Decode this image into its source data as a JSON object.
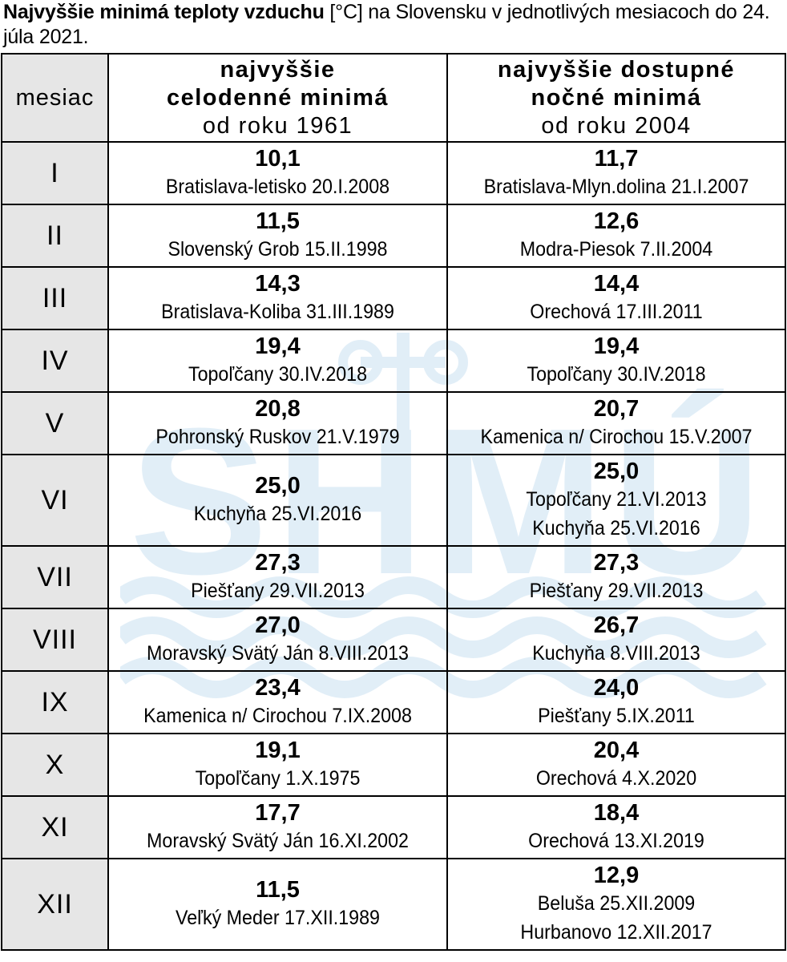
{
  "title": {
    "bold": "Najvyššie minimá teploty vzduchu",
    "rest": " [°C] na Slovensku v jednotlivých mesiacoch do 24. júla 2021."
  },
  "watermark": {
    "text": "SHMÚ",
    "color": "#1f7fc4"
  },
  "table": {
    "header": {
      "month": "mesiac",
      "col_a": {
        "line1": "najvyššie",
        "line2": "celodenné minimá",
        "line3": "od roku 1961"
      },
      "col_b": {
        "line1": "najvyššie dostupné",
        "line2": "nočné minimá",
        "line3": "od roku 2004"
      }
    },
    "rows": [
      {
        "month": "I",
        "a_value": "10,1",
        "a_locs": [
          "Bratislava-letisko 20.I.2008"
        ],
        "b_value": "11,7",
        "b_locs": [
          "Bratislava-Mlyn.dolina 21.I.2007"
        ]
      },
      {
        "month": "II",
        "a_value": "11,5",
        "a_locs": [
          "Slovenský Grob 15.II.1998"
        ],
        "b_value": "12,6",
        "b_locs": [
          "Modra-Piesok 7.II.2004"
        ]
      },
      {
        "month": "III",
        "a_value": "14,3",
        "a_locs": [
          "Bratislava-Koliba 31.III.1989"
        ],
        "b_value": "14,4",
        "b_locs": [
          "Orechová 17.III.2011"
        ]
      },
      {
        "month": "IV",
        "a_value": "19,4",
        "a_locs": [
          "Topoľčany 30.IV.2018"
        ],
        "b_value": "19,4",
        "b_locs": [
          "Topoľčany 30.IV.2018"
        ]
      },
      {
        "month": "V",
        "a_value": "20,8",
        "a_locs": [
          "Pohronský Ruskov 21.V.1979"
        ],
        "b_value": "20,7",
        "b_locs": [
          "Kamenica n/ Cirochou 15.V.2007"
        ]
      },
      {
        "month": "VI",
        "a_value": "25,0",
        "a_locs": [
          "Kuchyňa 25.VI.2016"
        ],
        "b_value": "25,0",
        "b_locs": [
          "Topoľčany 21.VI.2013",
          "Kuchyňa 25.VI.2016"
        ]
      },
      {
        "month": "VII",
        "a_value": "27,3",
        "a_locs": [
          "Piešťany 29.VII.2013"
        ],
        "b_value": "27,3",
        "b_locs": [
          "Piešťany 29.VII.2013"
        ]
      },
      {
        "month": "VIII",
        "a_value": "27,0",
        "a_locs": [
          "Moravský Svätý Ján 8.VIII.2013"
        ],
        "b_value": "26,7",
        "b_locs": [
          "Kuchyňa 8.VIII.2013"
        ]
      },
      {
        "month": "IX",
        "a_value": "23,4",
        "a_locs": [
          "Kamenica n/ Cirochou 7.IX.2008"
        ],
        "b_value": "24,0",
        "b_locs": [
          "Piešťany 5.IX.2011"
        ]
      },
      {
        "month": "X",
        "a_value": "19,1",
        "a_locs": [
          "Topoľčany 1.X.1975"
        ],
        "b_value": "20,4",
        "b_locs": [
          "Orechová 4.X.2020"
        ]
      },
      {
        "month": "XI",
        "a_value": "17,7",
        "a_locs": [
          "Moravský Svätý Ján 16.XI.2002"
        ],
        "b_value": "18,4",
        "b_locs": [
          "Orechová 13.XI.2019"
        ]
      },
      {
        "month": "XII",
        "a_value": "11,5",
        "a_locs": [
          "Veľký Meder 17.XII.1989"
        ],
        "b_value": "12,9",
        "b_locs": [
          "Beluša 25.XII.2009",
          "Hurbanovo 12.XII.2017"
        ]
      }
    ]
  }
}
